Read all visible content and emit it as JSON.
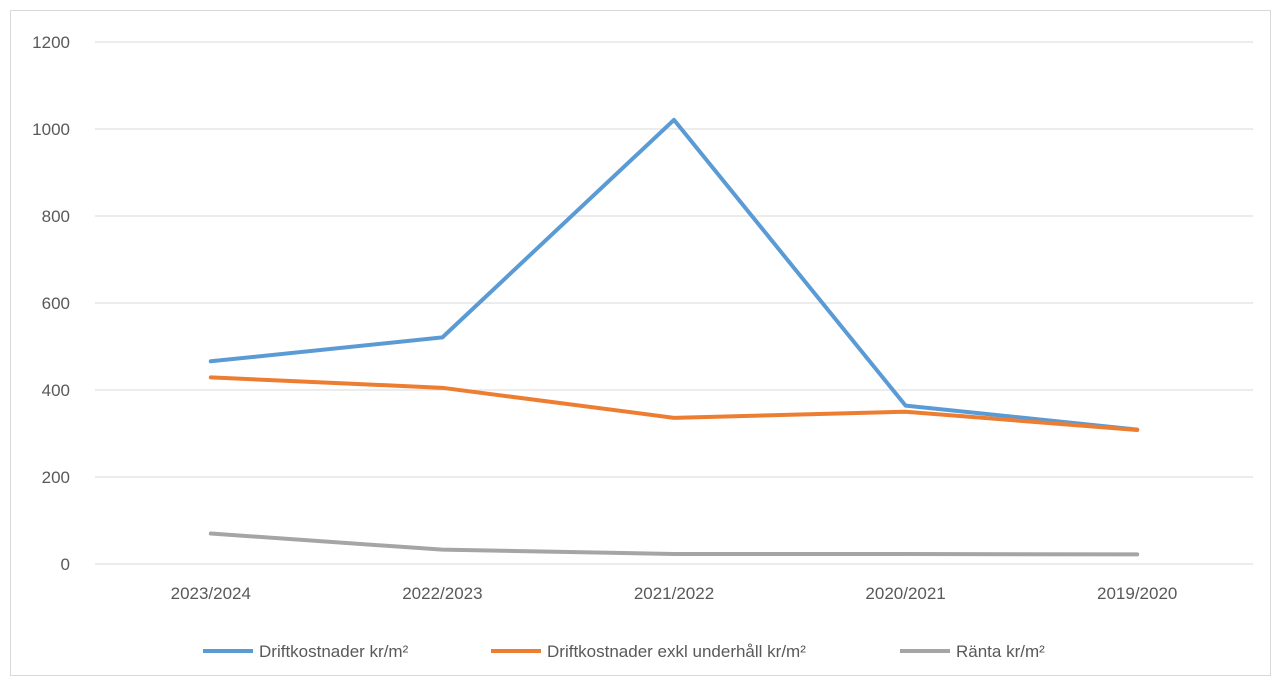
{
  "chart_data": {
    "type": "line",
    "categories": [
      "2023/2024",
      "2022/2023",
      "2021/2022",
      "2020/2021",
      "2019/2020"
    ],
    "series": [
      {
        "name": "Driftkostnader kr/m²",
        "values": [
          466,
          521,
          1021,
          364,
          309
        ],
        "color": "#5b9bd5"
      },
      {
        "name": "Driftkostnader exkl underhåll kr/m²",
        "values": [
          429,
          405,
          336,
          350,
          308
        ],
        "color": "#ed7d31"
      },
      {
        "name": "Ränta kr/m²",
        "values": [
          70,
          33,
          23,
          23,
          22
        ],
        "color": "#a5a5a5"
      }
    ],
    "ylim": [
      0,
      1200
    ],
    "yticks": [
      0,
      200,
      400,
      600,
      800,
      1000,
      1200
    ],
    "grid": true,
    "legend": "bottom"
  }
}
